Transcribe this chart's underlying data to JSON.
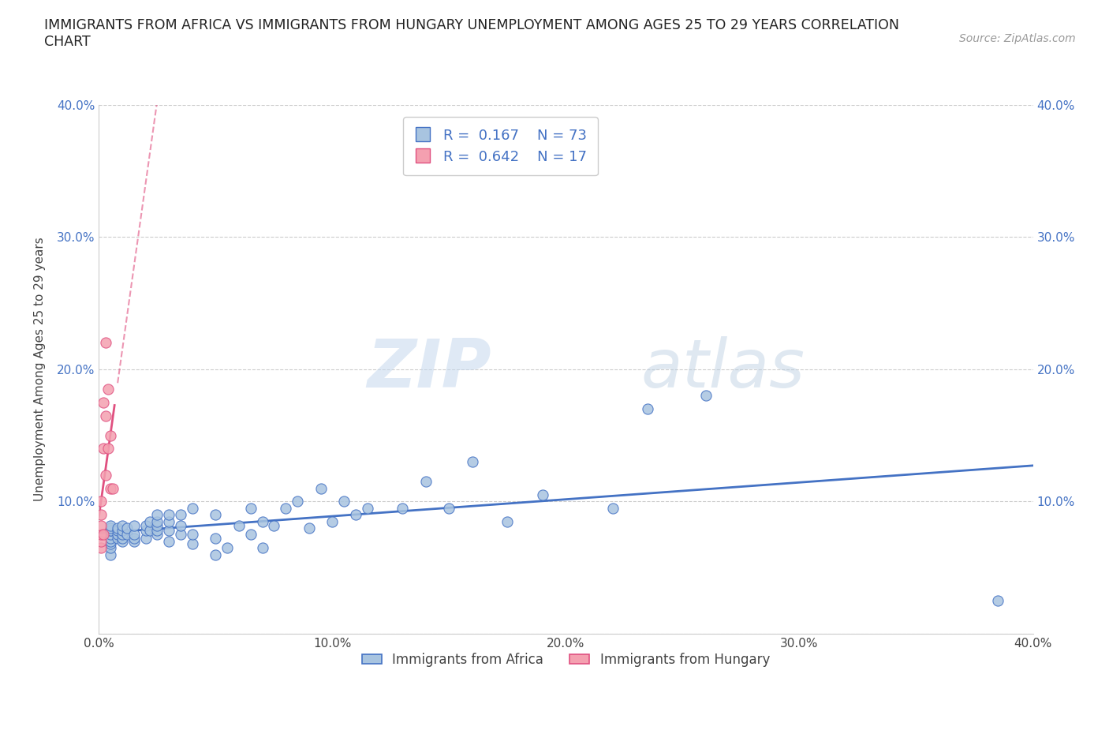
{
  "title": "IMMIGRANTS FROM AFRICA VS IMMIGRANTS FROM HUNGARY UNEMPLOYMENT AMONG AGES 25 TO 29 YEARS CORRELATION\nCHART",
  "source_text": "Source: ZipAtlas.com",
  "ylabel": "Unemployment Among Ages 25 to 29 years",
  "xlim": [
    0.0,
    0.4
  ],
  "ylim": [
    0.0,
    0.4
  ],
  "xticks": [
    0.0,
    0.1,
    0.2,
    0.3,
    0.4
  ],
  "yticks": [
    0.0,
    0.1,
    0.2,
    0.3,
    0.4
  ],
  "xticklabels": [
    "0.0%",
    "10.0%",
    "20.0%",
    "30.0%",
    "40.0%"
  ],
  "yticklabels": [
    "",
    "10.0%",
    "20.0%",
    "30.0%",
    "40.0%"
  ],
  "africa_color": "#a8c4e0",
  "hungary_color": "#f4a0b0",
  "africa_line_color": "#4472c4",
  "hungary_line_color": "#e05080",
  "africa_R": 0.167,
  "africa_N": 73,
  "hungary_R": 0.642,
  "hungary_N": 17,
  "watermark_zip": "ZIP",
  "watermark_atlas": "atlas",
  "legend_label_africa": "Immigrants from Africa",
  "legend_label_hungary": "Immigrants from Hungary",
  "africa_x": [
    0.005,
    0.005,
    0.005,
    0.005,
    0.005,
    0.005,
    0.005,
    0.005,
    0.005,
    0.005,
    0.008,
    0.008,
    0.008,
    0.008,
    0.01,
    0.01,
    0.01,
    0.01,
    0.01,
    0.012,
    0.012,
    0.015,
    0.015,
    0.015,
    0.015,
    0.02,
    0.02,
    0.02,
    0.022,
    0.022,
    0.025,
    0.025,
    0.025,
    0.025,
    0.025,
    0.03,
    0.03,
    0.03,
    0.03,
    0.035,
    0.035,
    0.035,
    0.04,
    0.04,
    0.04,
    0.05,
    0.05,
    0.05,
    0.055,
    0.06,
    0.065,
    0.065,
    0.07,
    0.07,
    0.075,
    0.08,
    0.085,
    0.09,
    0.095,
    0.1,
    0.105,
    0.11,
    0.115,
    0.13,
    0.14,
    0.15,
    0.16,
    0.175,
    0.19,
    0.22,
    0.235,
    0.26,
    0.385
  ],
  "africa_y": [
    0.06,
    0.065,
    0.068,
    0.07,
    0.072,
    0.075,
    0.078,
    0.078,
    0.08,
    0.082,
    0.072,
    0.075,
    0.078,
    0.08,
    0.07,
    0.072,
    0.075,
    0.078,
    0.082,
    0.075,
    0.08,
    0.07,
    0.072,
    0.075,
    0.082,
    0.072,
    0.078,
    0.082,
    0.078,
    0.085,
    0.075,
    0.078,
    0.082,
    0.085,
    0.09,
    0.07,
    0.078,
    0.085,
    0.09,
    0.075,
    0.082,
    0.09,
    0.068,
    0.075,
    0.095,
    0.06,
    0.072,
    0.09,
    0.065,
    0.082,
    0.075,
    0.095,
    0.065,
    0.085,
    0.082,
    0.095,
    0.1,
    0.08,
    0.11,
    0.085,
    0.1,
    0.09,
    0.095,
    0.095,
    0.115,
    0.095,
    0.13,
    0.085,
    0.105,
    0.095,
    0.17,
    0.18,
    0.025
  ],
  "hungary_x": [
    0.001,
    0.001,
    0.001,
    0.001,
    0.001,
    0.001,
    0.002,
    0.002,
    0.002,
    0.003,
    0.003,
    0.003,
    0.004,
    0.004,
    0.005,
    0.005,
    0.006
  ],
  "hungary_y": [
    0.065,
    0.07,
    0.075,
    0.082,
    0.09,
    0.1,
    0.075,
    0.14,
    0.175,
    0.12,
    0.165,
    0.22,
    0.14,
    0.185,
    0.11,
    0.15,
    0.11
  ]
}
